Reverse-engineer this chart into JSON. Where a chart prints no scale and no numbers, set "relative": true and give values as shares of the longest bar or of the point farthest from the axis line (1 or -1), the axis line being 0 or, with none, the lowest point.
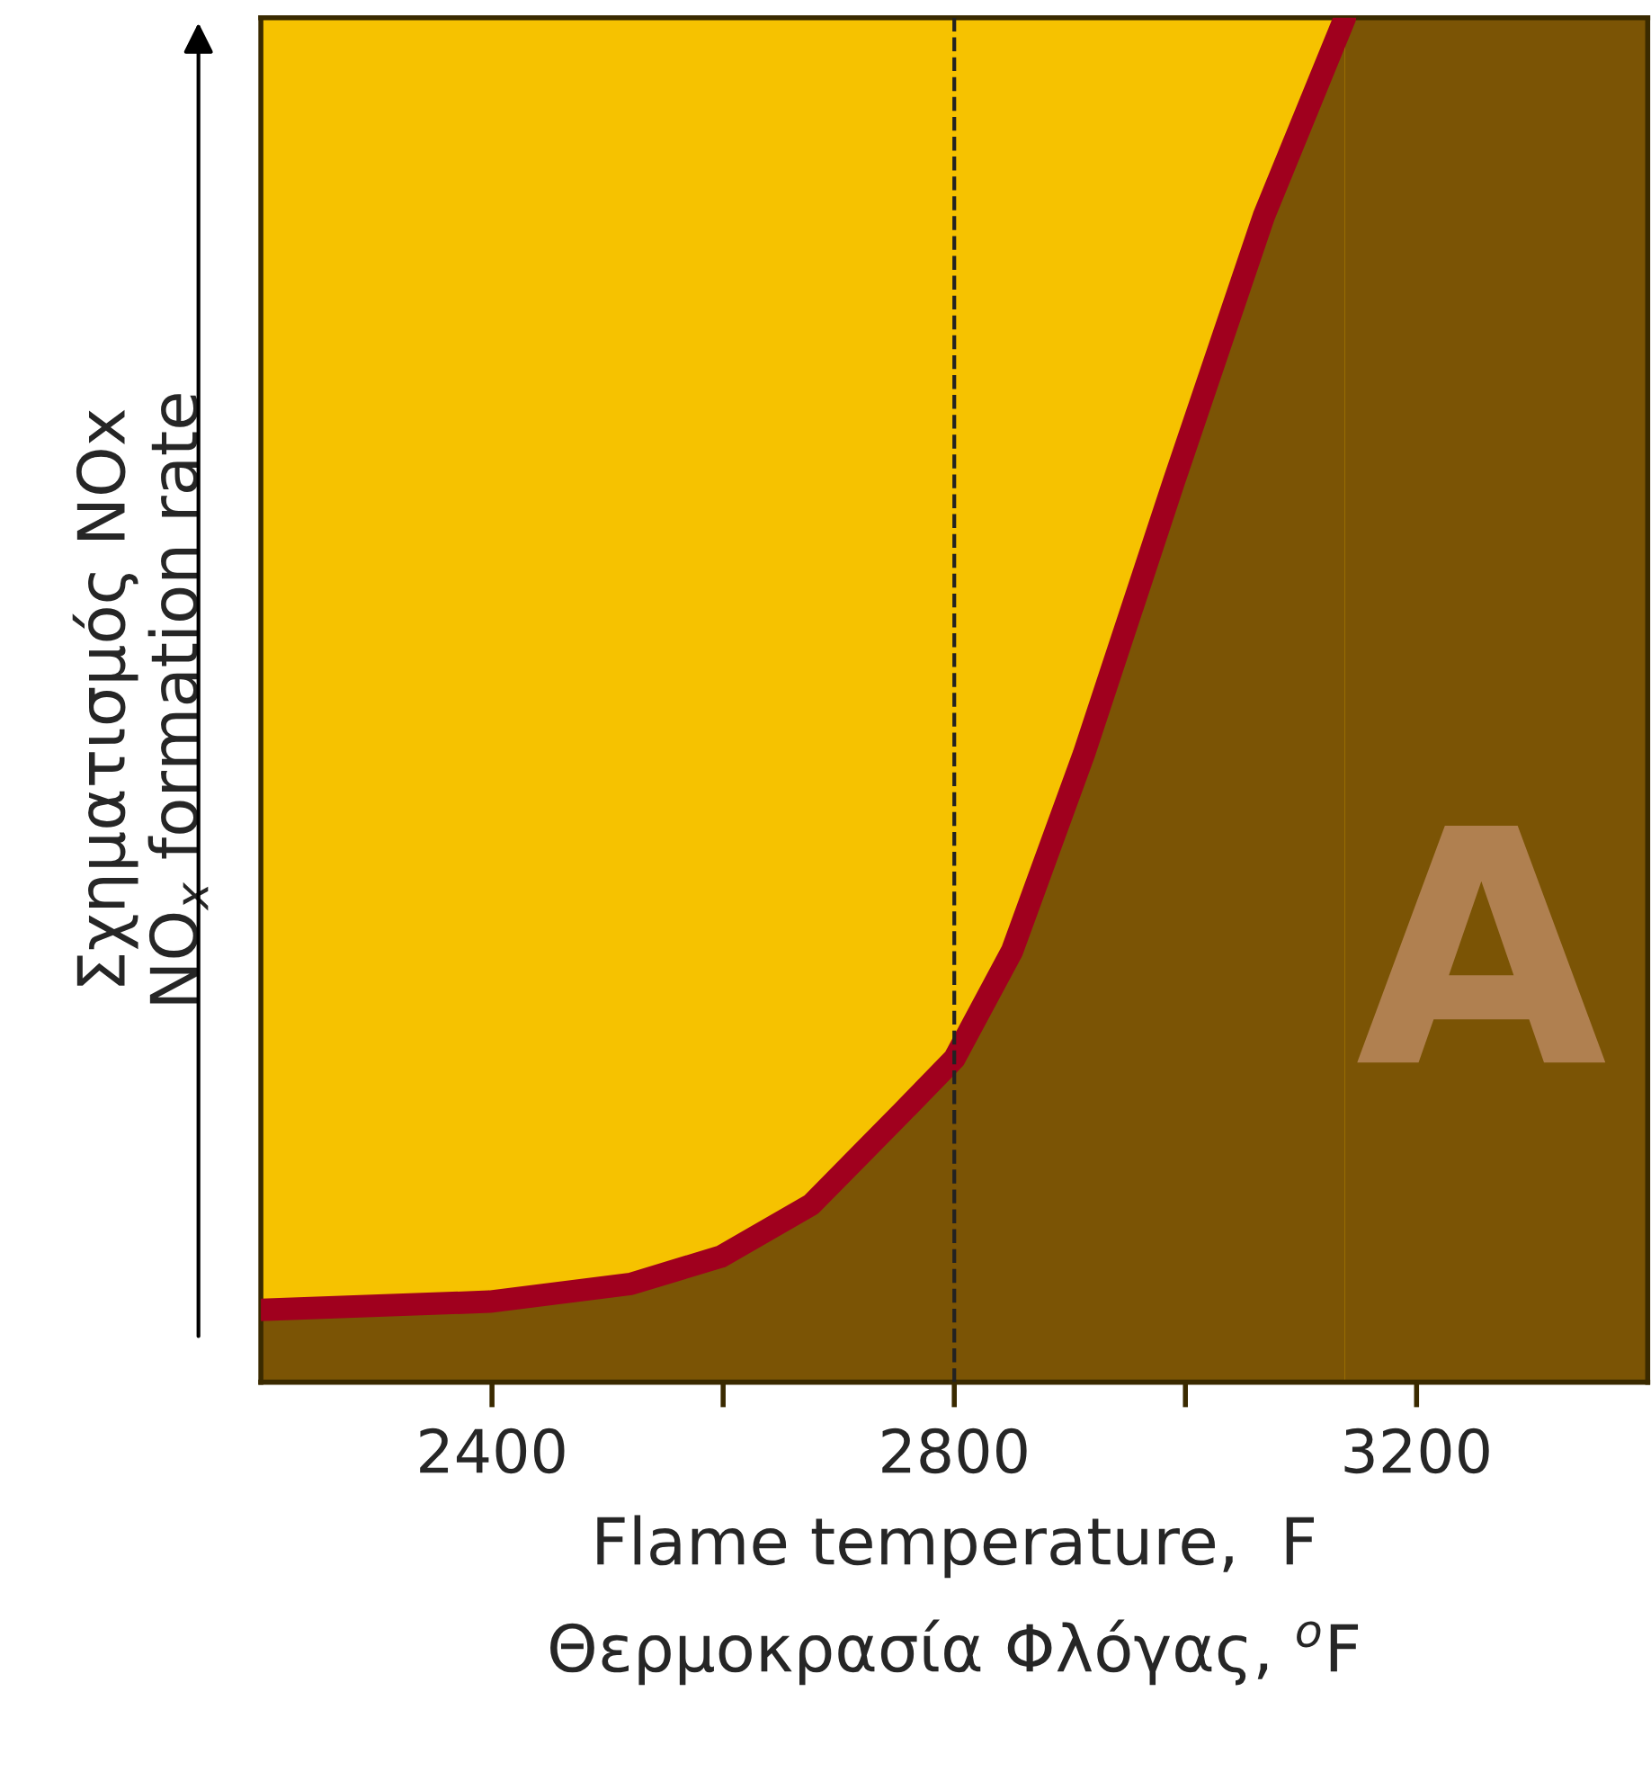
{
  "chart_data": {
    "type": "area",
    "relative": true,
    "xlabel": "Flame temperature,  F\nΘερμοκρασία Φλόγας, $^{o}$F",
    "ylabel": "Σχηματισμός NOx\nNO$_{x}$ formation rate",
    "x": [
      2200,
      2398,
      2520,
      2598,
      2676,
      2754,
      2800,
      2850,
      2912,
      2990,
      3068,
      3138
    ],
    "series": [
      {
        "color": "#7b5405",
        "values": [
          0.053,
          0.059,
          0.072,
          0.092,
          0.13,
          0.197,
          0.237,
          0.316,
          0.46,
          0.66,
          0.855,
          1.0
        ]
      }
    ],
    "xlim": [
      2200,
      3400
    ],
    "xticks": [
      2400,
      {
        "value": 2600,
        "label": null
      },
      2800,
      {
        "value": 3000,
        "label": null
      },
      3200
    ],
    "ref_lines": [
      {
        "axis": "x",
        "value": 2800,
        "line_style": "dashed",
        "color": "#222222"
      }
    ],
    "annotations": [
      "A"
    ],
    "bands": [
      {
        "axis": "x",
        "from": 3138,
        "to": 3400,
        "color": "#7b5405"
      }
    ],
    "grid": false
  }
}
